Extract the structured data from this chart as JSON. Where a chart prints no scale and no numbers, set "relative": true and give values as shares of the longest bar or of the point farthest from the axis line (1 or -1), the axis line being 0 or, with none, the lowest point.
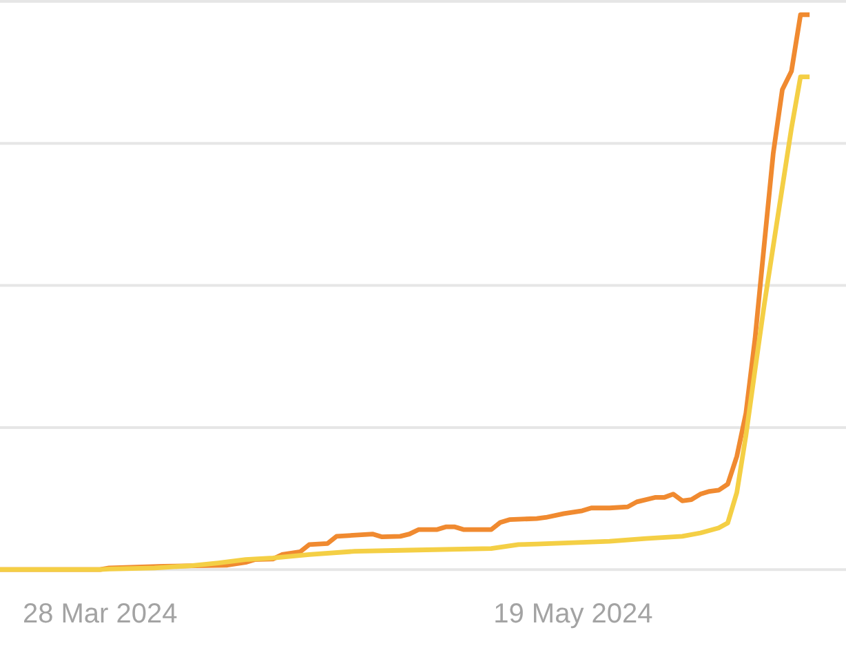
{
  "chart_data": {
    "type": "line",
    "relative": true,
    "grid": "y",
    "xlim": [
      "2024-03-17",
      "2024-06-18"
    ],
    "xticks": [
      {
        "value": "2024-03-28",
        "label": "28 Mar 2024"
      },
      {
        "value": "2024-05-19",
        "label": "19 May 2024"
      }
    ],
    "series": [
      {
        "color": "#f08a30",
        "x": [
          "2024-03-17",
          "2024-03-28",
          "2024-03-29",
          "2024-04-04",
          "2024-04-11",
          "2024-04-13",
          "2024-04-14",
          "2024-04-16",
          "2024-04-17",
          "2024-04-19",
          "2024-04-20",
          "2024-04-22",
          "2024-04-23",
          "2024-04-27",
          "2024-04-28",
          "2024-04-30",
          "2024-05-01",
          "2024-05-02",
          "2024-05-04",
          "2024-05-05",
          "2024-05-06",
          "2024-05-07",
          "2024-05-10",
          "2024-05-11",
          "2024-05-12",
          "2024-05-15",
          "2024-05-16",
          "2024-05-18",
          "2024-05-20",
          "2024-05-21",
          "2024-05-23",
          "2024-05-25",
          "2024-05-26",
          "2024-05-28",
          "2024-05-29",
          "2024-05-30",
          "2024-05-31",
          "2024-06-01",
          "2024-06-02",
          "2024-06-03",
          "2024-06-04",
          "2024-06-05",
          "2024-06-06",
          "2024-06-07",
          "2024-06-08",
          "2024-06-09",
          "2024-06-10",
          "2024-06-11",
          "2024-06-12",
          "2024-06-13",
          "2024-06-14"
        ],
        "values": [
          0,
          0,
          0.003,
          0.006,
          0.008,
          0.013,
          0.018,
          0.019,
          0.027,
          0.032,
          0.045,
          0.047,
          0.06,
          0.064,
          0.059,
          0.06,
          0.064,
          0.072,
          0.072,
          0.077,
          0.077,
          0.072,
          0.072,
          0.085,
          0.09,
          0.092,
          0.094,
          0.101,
          0.106,
          0.111,
          0.111,
          0.113,
          0.122,
          0.13,
          0.13,
          0.136,
          0.124,
          0.126,
          0.136,
          0.141,
          0.143,
          0.154,
          0.204,
          0.282,
          0.416,
          0.584,
          0.75,
          0.865,
          0.898,
          1,
          1
        ]
      },
      {
        "color": "#f4cf45",
        "x": [
          "2024-03-17",
          "2024-03-28",
          "2024-03-29",
          "2024-04-03",
          "2024-04-07",
          "2024-04-10",
          "2024-04-13",
          "2024-04-16",
          "2024-04-20",
          "2024-04-25",
          "2024-05-01",
          "2024-05-10",
          "2024-05-13",
          "2024-05-15",
          "2024-05-23",
          "2024-05-27",
          "2024-05-31",
          "2024-06-02",
          "2024-06-04",
          "2024-06-05",
          "2024-06-06",
          "2024-06-07",
          "2024-06-08",
          "2024-06-09",
          "2024-06-10",
          "2024-06-11",
          "2024-06-12",
          "2024-06-13",
          "2024-06-14"
        ],
        "values": [
          0,
          0,
          0.001,
          0.003,
          0.007,
          0.012,
          0.018,
          0.021,
          0.027,
          0.033,
          0.035,
          0.038,
          0.045,
          0.046,
          0.051,
          0.056,
          0.06,
          0.066,
          0.075,
          0.084,
          0.139,
          0.242,
          0.36,
          0.476,
          0.583,
          0.689,
          0.795,
          0.888,
          0.888
        ]
      }
    ]
  }
}
